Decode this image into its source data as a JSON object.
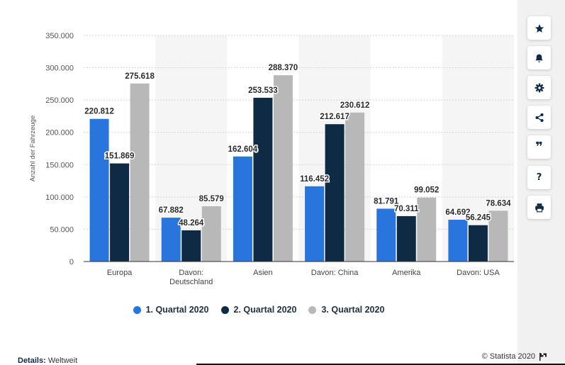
{
  "chart_data": {
    "type": "bar",
    "categories": [
      "Europa",
      "Davon: Deutschland",
      "Asien",
      "Davon: China",
      "Amerika",
      "Davon: USA"
    ],
    "category_lines": [
      [
        "Europa"
      ],
      [
        "Davon:",
        "Deutschland"
      ],
      [
        "Asien"
      ],
      [
        "Davon: China"
      ],
      [
        "Amerika"
      ],
      [
        "Davon: USA"
      ]
    ],
    "series": [
      {
        "name": "1. Quartal 2020",
        "color": "#2876dd",
        "values": [
          220812,
          67882,
          162604,
          116452,
          81791,
          64692
        ],
        "labels": [
          "220.812",
          "67.882",
          "162.604",
          "116.452",
          "81.791",
          "64.692"
        ]
      },
      {
        "name": "2. Quartal 2020",
        "color": "#0f2a44",
        "values": [
          151869,
          48264,
          253533,
          212617,
          70311,
          56245
        ],
        "labels": [
          "151.869",
          "48.264",
          "253.533",
          "212.617",
          "70.311",
          "56.245"
        ]
      },
      {
        "name": "3. Quartal 2020",
        "color": "#b8b8b8",
        "values": [
          275618,
          85579,
          288370,
          230612,
          99052,
          78634
        ],
        "labels": [
          "275.618",
          "85.579",
          "288.370",
          "230.612",
          "99.052",
          "78.634"
        ]
      }
    ],
    "yticks": [
      0,
      50000,
      100000,
      150000,
      200000,
      250000,
      300000,
      350000
    ],
    "ytick_labels": [
      "0",
      "50.000",
      "100.000",
      "150.000",
      "200.000",
      "250.000",
      "300.000",
      "350.000"
    ],
    "ylim": [
      0,
      350000
    ],
    "ylabel": "Anzahl der Fahrzeuge",
    "xlabel": "",
    "title": "",
    "grid": true,
    "legend_position": "bottom-center"
  },
  "footer": {
    "details_label": "Details:",
    "details_value": "Weltweit",
    "copyright": "© Statista 2020"
  },
  "sidebar": {
    "buttons": [
      {
        "name": "favorite-button",
        "icon": "star-icon"
      },
      {
        "name": "notification-button",
        "icon": "bell-icon"
      },
      {
        "name": "settings-button",
        "icon": "gear-icon"
      },
      {
        "name": "share-button",
        "icon": "share-icon"
      },
      {
        "name": "cite-button",
        "icon": "quote-icon"
      },
      {
        "name": "help-button",
        "icon": "question-icon"
      },
      {
        "name": "print-button",
        "icon": "printer-icon"
      }
    ]
  }
}
